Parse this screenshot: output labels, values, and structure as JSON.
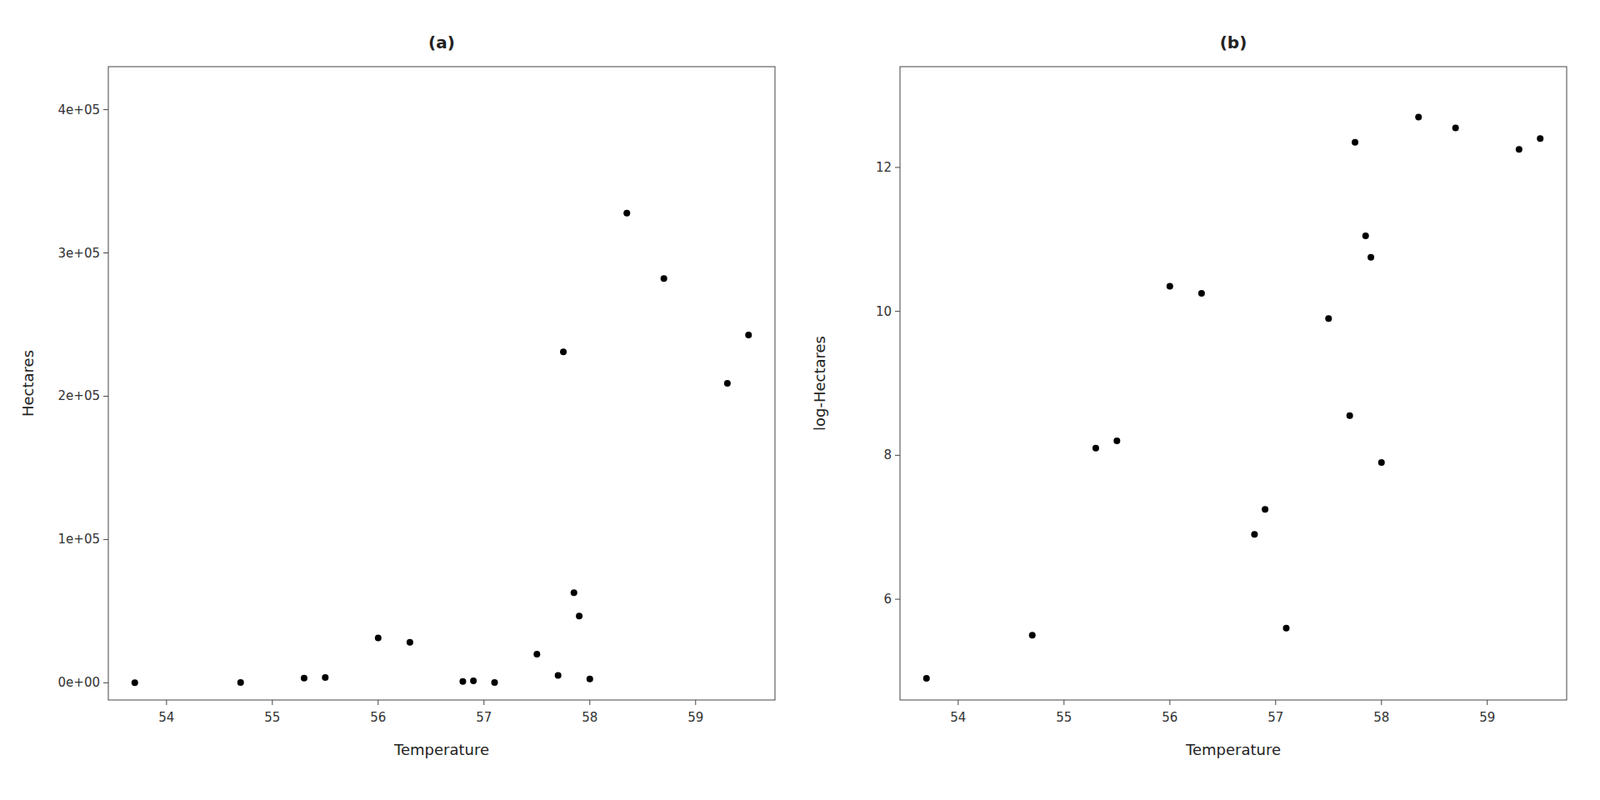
{
  "chart_data": [
    {
      "type": "scatter",
      "title": "(a)",
      "x_label": "Temperature",
      "y_label": "Hectares",
      "x": [
        53.7,
        54.7,
        55.3,
        55.5,
        56.0,
        56.3,
        56.8,
        56.9,
        57.1,
        57.5,
        57.7,
        57.85,
        57.9,
        58.0,
        58.35,
        57.75,
        58.7,
        59.3,
        59.5
      ],
      "values": [
        134.29,
        244.69,
        3294.47,
        3640.95,
        31257.04,
        28282.54,
        992.27,
        1408.1,
        270.43,
        19930.37,
        5166.75,
        62943.95,
        46630.03,
        2697.28,
        327747.9,
        230960.04,
        282095.23,
        208981.29,
        242801.62
      ],
      "color": "black",
      "grid": false,
      "xlim": [
        53.45,
        59.75
      ],
      "ylim": [
        -12000,
        430000
      ],
      "xticks": [
        54,
        55,
        56,
        57,
        58,
        59
      ],
      "yticks": [
        {
          "value": 0,
          "label": "0e+00"
        },
        {
          "value": 100000,
          "label": "1e+05"
        },
        {
          "value": 200000,
          "label": "2e+05"
        },
        {
          "value": 300000,
          "label": "3e+05"
        },
        {
          "value": 400000,
          "label": "4e+05"
        }
      ]
    },
    {
      "type": "scatter",
      "title": "(b)",
      "x_label": "Temperature",
      "y_label": "log-Hectares",
      "x": [
        53.7,
        54.7,
        55.3,
        55.5,
        56.0,
        56.3,
        56.8,
        56.9,
        57.1,
        57.5,
        57.7,
        57.85,
        57.9,
        58.0,
        58.35,
        57.75,
        58.7,
        59.3,
        59.5
      ],
      "values": [
        4.9,
        5.5,
        8.1,
        8.2,
        10.35,
        10.25,
        6.9,
        7.25,
        5.6,
        9.9,
        8.55,
        11.05,
        10.75,
        7.9,
        12.7,
        12.35,
        12.55,
        12.25,
        12.4
      ],
      "color": "black",
      "grid": false,
      "xlim": [
        53.45,
        59.75
      ],
      "ylim": [
        4.6,
        13.4
      ],
      "xticks": [
        54,
        55,
        56,
        57,
        58,
        59
      ],
      "yticks": [
        6,
        8,
        10,
        12
      ]
    }
  ]
}
